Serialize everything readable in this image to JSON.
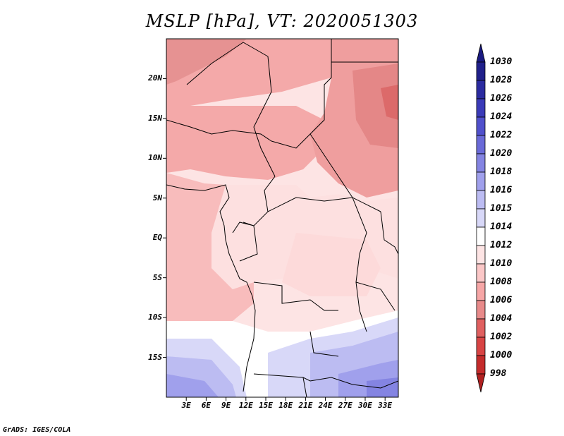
{
  "title": "MSLP [hPa], VT: 2020051303",
  "footer": "GrADS: IGES/COLA",
  "map": {
    "variable": "MSLP",
    "units": "hPa",
    "valid_time": "2020051303",
    "lat_range": [
      -20,
      25
    ],
    "lon_range": [
      0,
      35
    ],
    "lat_ticks": [
      {
        "value": 20,
        "label": "20N"
      },
      {
        "value": 15,
        "label": "15N"
      },
      {
        "value": 10,
        "label": "10N"
      },
      {
        "value": 5,
        "label": "5N"
      },
      {
        "value": 0,
        "label": "EQ"
      },
      {
        "value": -5,
        "label": "5S"
      },
      {
        "value": -10,
        "label": "10S"
      },
      {
        "value": -15,
        "label": "15S"
      }
    ],
    "lon_ticks": [
      {
        "value": 3,
        "label": "3E"
      },
      {
        "value": 6,
        "label": "6E"
      },
      {
        "value": 9,
        "label": "9E"
      },
      {
        "value": 12,
        "label": "12E"
      },
      {
        "value": 15,
        "label": "15E"
      },
      {
        "value": 18,
        "label": "18E"
      },
      {
        "value": 21,
        "label": "21E"
      },
      {
        "value": 24,
        "label": "24E"
      },
      {
        "value": 27,
        "label": "27E"
      },
      {
        "value": 30,
        "label": "30E"
      },
      {
        "value": 33,
        "label": "33E"
      }
    ]
  },
  "colorbar": {
    "levels": [
      {
        "label": "1030",
        "color": "#20208a"
      },
      {
        "label": "1028",
        "color": "#2b2ba0"
      },
      {
        "label": "1026",
        "color": "#3a3ab8"
      },
      {
        "label": "1024",
        "color": "#5050cc"
      },
      {
        "label": "1022",
        "color": "#6a6ad8"
      },
      {
        "label": "1020",
        "color": "#8484e2"
      },
      {
        "label": "1018",
        "color": "#a0a0ec"
      },
      {
        "label": "1016",
        "color": "#bcbcf2"
      },
      {
        "label": "1015",
        "color": "#d8d8f8"
      },
      {
        "label": "1014",
        "color": "#ffffff"
      },
      {
        "label": "1012",
        "color": "#fde4e4"
      },
      {
        "label": "1010",
        "color": "#fbc7c7"
      },
      {
        "label": "1008",
        "color": "#f6a6a6"
      },
      {
        "label": "1006",
        "color": "#e88a8a"
      },
      {
        "label": "1004",
        "color": "#e06060"
      },
      {
        "label": "1002",
        "color": "#d84444"
      },
      {
        "label": "1000",
        "color": "#c42b2b"
      },
      {
        "label": "998",
        "color": "#a81e1e"
      }
    ],
    "top_arrow_color": "#1a1a80",
    "bottom_arrow_color": "#b02020"
  }
}
